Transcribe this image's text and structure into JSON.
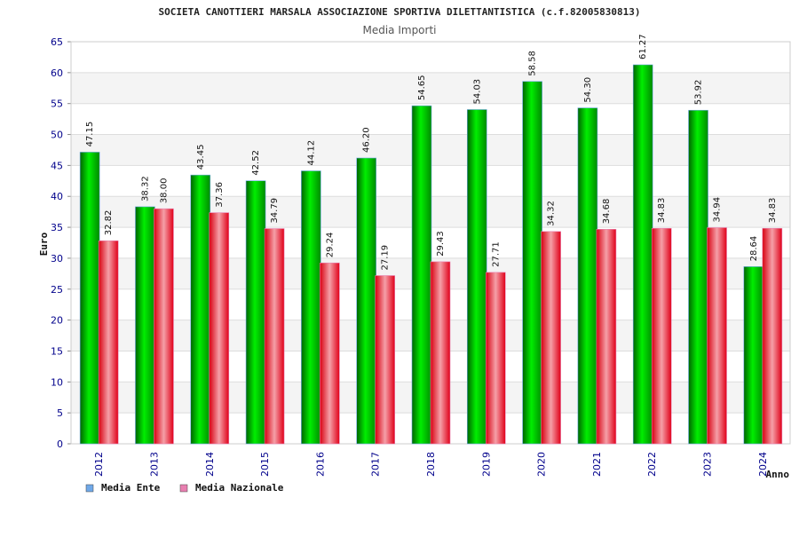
{
  "chart_data": {
    "type": "bar",
    "title": "SOCIETA CANOTTIERI MARSALA ASSOCIAZIONE SPORTIVA DILETTANTISTICA (c.f.82005830813)",
    "subtitle": "Media Importi",
    "xlabel": "Anno",
    "ylabel": "Euro",
    "ylim": [
      0,
      65
    ],
    "yticks": [
      0,
      5,
      10,
      15,
      20,
      25,
      30,
      35,
      40,
      45,
      50,
      55,
      60,
      65
    ],
    "categories": [
      "2012",
      "2013",
      "2014",
      "2015",
      "2016",
      "2017",
      "2018",
      "2019",
      "2020",
      "2021",
      "2022",
      "2023",
      "2024"
    ],
    "series": [
      {
        "name": "Media Ente",
        "color": "#00c000",
        "legend_color": "#6fa8e8",
        "values": [
          47.15,
          38.32,
          43.45,
          42.52,
          44.12,
          46.2,
          54.65,
          54.03,
          58.58,
          54.3,
          61.27,
          53.92,
          28.64
        ],
        "labels": [
          "47.15",
          "38.32",
          "43.45",
          "42.52",
          "44.12",
          "46.20",
          "54.65",
          "54.03",
          "58.58",
          "54.30",
          "61.27",
          "53.92",
          "28.64"
        ]
      },
      {
        "name": "Media Nazionale",
        "color": "#e8202a",
        "legend_color": "#e87fb0",
        "values": [
          32.82,
          38.0,
          37.36,
          34.79,
          29.24,
          27.19,
          29.43,
          27.71,
          34.32,
          34.68,
          34.83,
          34.94,
          34.83
        ],
        "labels": [
          "32.82",
          "38.00",
          "37.36",
          "34.79",
          "29.24",
          "27.19",
          "29.43",
          "27.71",
          "34.32",
          "34.68",
          "34.83",
          "34.94",
          "34.83"
        ]
      }
    ],
    "grid": true,
    "legend_position": "bottom-left"
  }
}
